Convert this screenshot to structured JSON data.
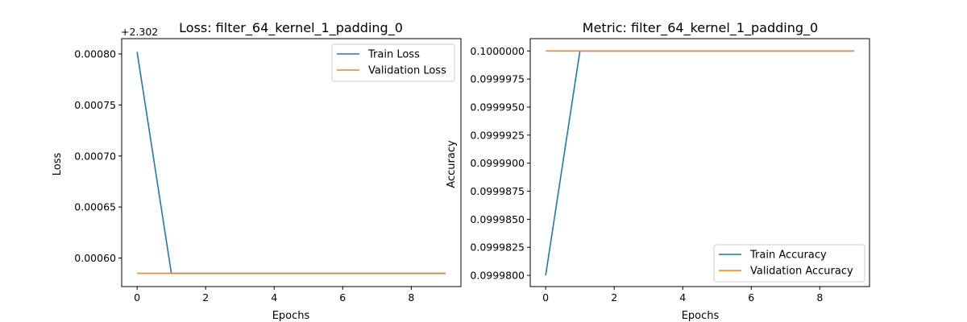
{
  "chart_data": [
    {
      "type": "line",
      "title": "Loss: filter_64_kernel_1_padding_0",
      "xlabel": "Epochs",
      "ylabel": "Loss",
      "y_offset_label": "+2.302",
      "x": [
        0,
        1,
        2,
        3,
        4,
        5,
        6,
        7,
        8,
        9
      ],
      "xlim": [
        -0.45,
        9.45
      ],
      "ylim": [
        0.000572,
        0.000815
      ],
      "x_ticks": [
        0,
        2,
        4,
        6,
        8
      ],
      "x_tick_labels": [
        "0",
        "2",
        "4",
        "6",
        "8"
      ],
      "y_ticks": [
        0.0006,
        0.00065,
        0.0007,
        0.00075,
        0.0008
      ],
      "y_tick_labels": [
        "0.00060",
        "0.00065",
        "0.00070",
        "0.00075",
        "0.00080"
      ],
      "legend_position": "upper right",
      "grid": false,
      "series": [
        {
          "name": "Train Loss",
          "color": "#1f77b4",
          "values": [
            0.000802,
            0.000585,
            0.000585,
            0.000585,
            0.000585,
            0.000585,
            0.000585,
            0.000585,
            0.000585,
            0.000585
          ]
        },
        {
          "name": "Validation Loss",
          "color": "#ff7f0e",
          "values": [
            0.000585,
            0.000585,
            0.000585,
            0.000585,
            0.000585,
            0.000585,
            0.000585,
            0.000585,
            0.000585,
            0.000585
          ]
        }
      ]
    },
    {
      "type": "line",
      "title": "Metric: filter_64_kernel_1_padding_0",
      "xlabel": "Epochs",
      "ylabel": "Accuracy",
      "x": [
        0,
        1,
        2,
        3,
        4,
        5,
        6,
        7,
        8,
        9
      ],
      "xlim": [
        -0.45,
        9.45
      ],
      "ylim": [
        0.099979,
        0.1000011
      ],
      "x_ticks": [
        0,
        2,
        4,
        6,
        8
      ],
      "x_tick_labels": [
        "0",
        "2",
        "4",
        "6",
        "8"
      ],
      "y_ticks": [
        0.09998,
        0.0999825,
        0.099985,
        0.0999875,
        0.09999,
        0.0999925,
        0.099995,
        0.0999975,
        0.1
      ],
      "y_tick_labels": [
        "0.0999800",
        "0.0999825",
        "0.0999850",
        "0.0999875",
        "0.0999900",
        "0.0999925",
        "0.0999950",
        "0.0999975",
        "0.1000000"
      ],
      "legend_position": "lower right",
      "grid": false,
      "series": [
        {
          "name": "Train Accuracy",
          "color": "#1f77b4",
          "values": [
            0.09998,
            0.1,
            0.1,
            0.1,
            0.1,
            0.1,
            0.1,
            0.1,
            0.1,
            0.1
          ]
        },
        {
          "name": "Validation Accuracy",
          "color": "#ff7f0e",
          "values": [
            0.1,
            0.1,
            0.1,
            0.1,
            0.1,
            0.1,
            0.1,
            0.1,
            0.1,
            0.1
          ]
        }
      ]
    }
  ]
}
